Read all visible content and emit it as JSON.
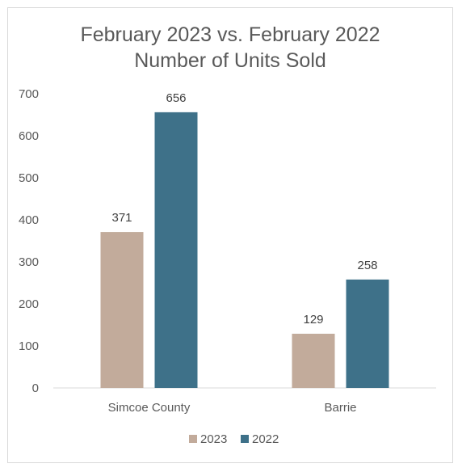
{
  "chart_data": {
    "type": "bar",
    "title_lines": [
      "February 2023 vs. February 2022",
      "Number of Units Sold"
    ],
    "categories": [
      "Simcoe County",
      "Barrie"
    ],
    "series": [
      {
        "name": "2023",
        "values": [
          371,
          129
        ],
        "color": "#c2ab9b"
      },
      {
        "name": "2022",
        "values": [
          656,
          258
        ],
        "color": "#3e7189"
      }
    ],
    "y_ticks": [
      0,
      100,
      200,
      300,
      400,
      500,
      600,
      700
    ],
    "ylim": [
      0,
      700
    ],
    "xlabel": "",
    "ylabel": "",
    "grid": false,
    "legend_position": "bottom",
    "data_labels": true,
    "colors": {
      "axis": "#d9d9d9",
      "text": "#595959",
      "border": "#d9d9d9"
    }
  }
}
